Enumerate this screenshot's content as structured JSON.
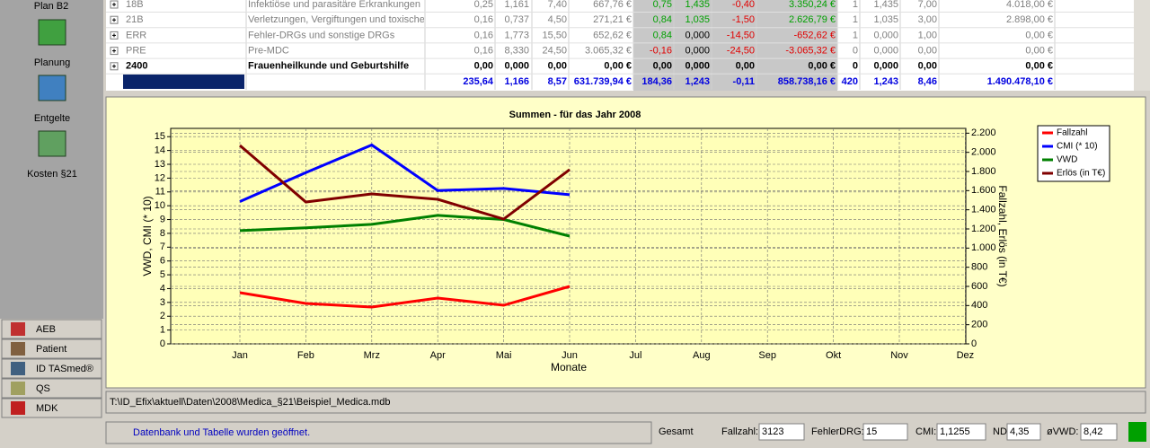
{
  "sidebar": {
    "title": "Plan B2",
    "items": [
      "Planung",
      "Entgelte",
      "Kosten §21"
    ],
    "menu": [
      "AEB",
      "Patient",
      "ID TASmed®",
      "QS",
      "MDK"
    ]
  },
  "table": {
    "rows": [
      {
        "code": "18B",
        "name": "Infektiöse und parasitäre Erkrankungen",
        "cells": [
          "0,25",
          "1,161",
          "7,40",
          "667,76 €",
          "0,75",
          "1,435",
          "-0,40",
          "3.350,24 €",
          "1",
          "1,435",
          "7,00",
          "4.018,00 €"
        ]
      },
      {
        "code": "21B",
        "name": "Verletzungen, Vergiftungen und toxische '",
        "cells": [
          "0,16",
          "0,737",
          "4,50",
          "271,21 €",
          "0,84",
          "1,035",
          "-1,50",
          "2.626,79 €",
          "1",
          "1,035",
          "3,00",
          "2.898,00 €"
        ]
      },
      {
        "code": "ERR",
        "name": "Fehler-DRGs und sonstige DRGs",
        "cells": [
          "0,16",
          "1,773",
          "15,50",
          "652,62 €",
          "0,84",
          "0,000",
          "-14,50",
          "-652,62 €",
          "1",
          "0,000",
          "1,00",
          "0,00 €"
        ]
      },
      {
        "code": "PRE",
        "name": "Pre-MDC",
        "cells": [
          "0,16",
          "8,330",
          "24,50",
          "3.065,32 €",
          "-0,16",
          "0,000",
          "-24,50",
          "-3.065,32 €",
          "0",
          "0,000",
          "0,00",
          "0,00 €"
        ]
      },
      {
        "code": "2400",
        "name": "Frauenheilkunde und Geburtshilfe",
        "bold": true,
        "cells": [
          "0,00",
          "0,000",
          "0,00",
          "0,00 €",
          "0,00",
          "0,000",
          "0,00",
          "0,00 €",
          "0",
          "0,000",
          "0,00",
          "0,00 €"
        ]
      }
    ],
    "total": {
      "cells": [
        "235,64",
        "1,166",
        "8,57",
        "631.739,94 €",
        "184,36",
        "1,243",
        "-0,11",
        "858.738,16 €",
        "420",
        "1,243",
        "8,46",
        "1.490.478,10 €"
      ]
    }
  },
  "chart_data": {
    "type": "line",
    "title": "Summen - für das Jahr 2008",
    "xlabel": "Monate",
    "ylabel": "VWD, CMI (* 10)",
    "y2label": "Fallzahl, Erlös (in T€)",
    "categories": [
      "Jan",
      "Feb",
      "Mrz",
      "Apr",
      "Mai",
      "Jun",
      "Jul",
      "Aug",
      "Sep",
      "Okt",
      "Nov",
      "Dez"
    ],
    "series": [
      {
        "name": "Fallzahl",
        "color": "#ff0000",
        "axis": "y2",
        "values": [
          534,
          422,
          384,
          478,
          403,
          600,
          null,
          null,
          null,
          null,
          null,
          null
        ]
      },
      {
        "name": "CMI (* 10)",
        "color": "#0000ff",
        "values": [
          10.3,
          12.4,
          14.4,
          11.1,
          11.25,
          10.8,
          null,
          null,
          null,
          null,
          null,
          null
        ]
      },
      {
        "name": "VWD",
        "color": "#008000",
        "values": [
          8.2,
          8.4,
          8.65,
          9.3,
          9.0,
          7.8,
          null,
          null,
          null,
          null,
          null,
          null
        ]
      },
      {
        "name": "Erlös (in T€)",
        "color": "#800000",
        "axis": "y2",
        "values": [
          2072,
          1481,
          1566,
          1509,
          1303,
          1819,
          null,
          null,
          null,
          null,
          null,
          null
        ]
      }
    ],
    "ylim": [
      0,
      15.6
    ],
    "yticks": [
      0,
      1,
      2,
      3,
      4,
      5,
      6,
      7,
      8,
      9,
      10,
      11,
      12,
      13,
      14,
      15
    ],
    "y2lim": [
      0,
      2250
    ],
    "y2ticks": [
      0,
      200,
      400,
      600,
      800,
      {
        "value": 1000,
        "label": "1.000"
      },
      {
        "value": 1200,
        "label": "1.200"
      },
      {
        "value": 1400,
        "label": "1.400"
      },
      {
        "value": 1600,
        "label": "1.600"
      },
      {
        "value": 1800,
        "label": "1.800"
      },
      {
        "value": 2000,
        "label": "2.000"
      },
      {
        "value": 2200,
        "label": "2.200"
      }
    ],
    "grid": true,
    "legend": "right"
  },
  "path": "T:\\ID_Efix\\aktuell\\Daten\\2008\\Medica_§21\\Beispiel_Medica.mdb",
  "status": {
    "message": "Datenbank und Tabelle wurden geöffnet.",
    "total_label": "Gesamt",
    "fields": [
      {
        "label": "Fallzahl:",
        "value": "3123"
      },
      {
        "label": "FehlerDRG:",
        "value": "15"
      },
      {
        "label": "CMI:",
        "value": "1,1255"
      },
      {
        "label": "NDI:",
        "value": "4,35"
      },
      {
        "label": "øVWD:",
        "value": "8,42"
      }
    ]
  }
}
